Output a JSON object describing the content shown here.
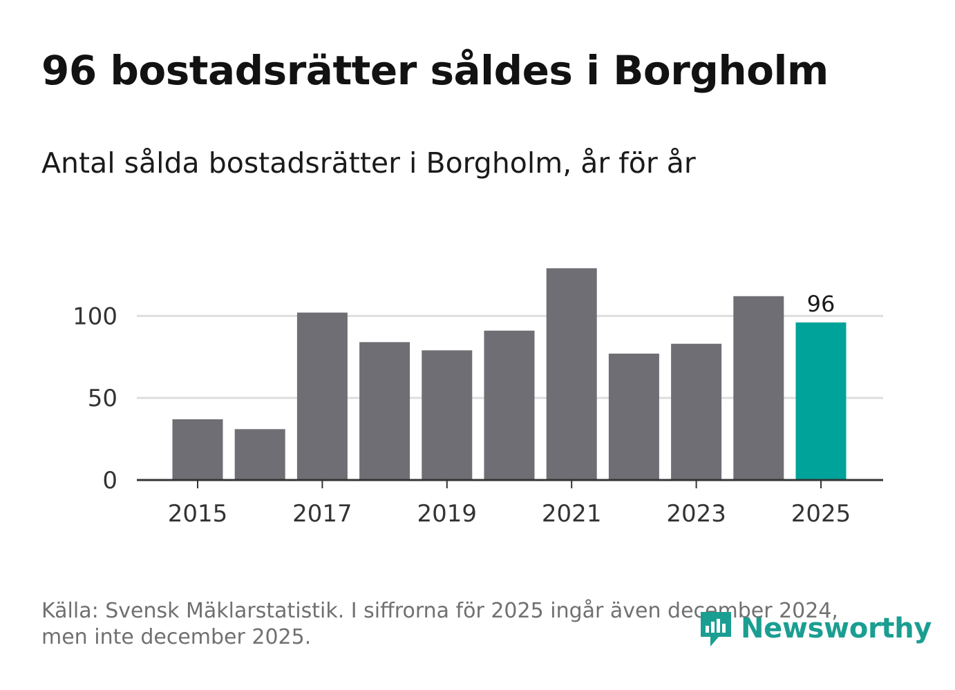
{
  "header": {
    "title": "96 bostadsrätter såldes i Borgholm",
    "subtitle": "Antal sålda bostadsrätter i Borgholm, år för år"
  },
  "chart_data": {
    "type": "bar",
    "categories": [
      "2015",
      "2016",
      "2017",
      "2018",
      "2019",
      "2020",
      "2021",
      "2022",
      "2023",
      "2024",
      "2025"
    ],
    "values": [
      37,
      31,
      102,
      84,
      79,
      91,
      129,
      77,
      83,
      112,
      96
    ],
    "x_tick_labels": [
      "2015",
      "2017",
      "2019",
      "2021",
      "2023",
      "2025"
    ],
    "y_ticks": [
      0,
      50,
      100
    ],
    "ylim": [
      0,
      138
    ],
    "highlight_category": "2025",
    "highlight_label": "96",
    "colors": {
      "bar": "#6f6e74",
      "highlight": "#00a399",
      "grid": "#dedede",
      "axis": "#333333"
    },
    "xlabel": "",
    "ylabel": ""
  },
  "footer": {
    "source_line1": "Källa: Svensk Mäklarstatistik. I siffrorna för 2025 ingår även december 2024,",
    "source_line2": "men inte december 2025."
  },
  "logo": {
    "text": "Newsworthy",
    "icon": "bar-chart-speech-bubble-icon",
    "color": "#1b9e92"
  }
}
